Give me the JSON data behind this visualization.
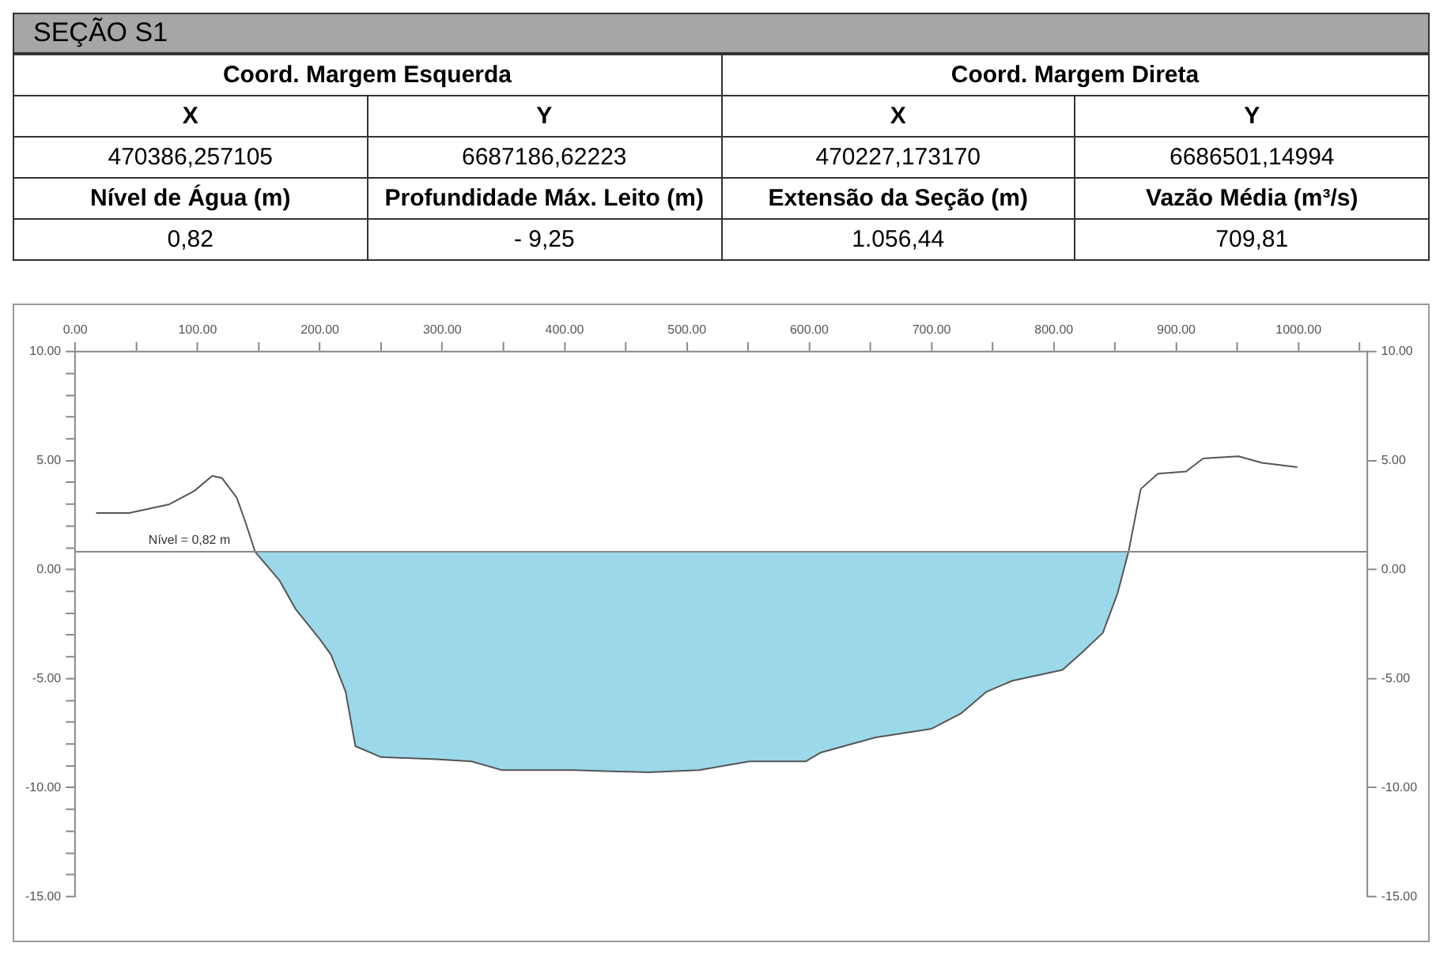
{
  "chart_data": {
    "type": "line",
    "title": "SEÇÃO S1",
    "annotations": [
      "Coord. Margem Esquerda",
      "Coord. Margem Direta",
      "X",
      "Y",
      "X",
      "Y",
      "470386,257105",
      "6687186,62223",
      "470227,173170",
      "6686501,14994",
      "Nível de Água (m)",
      "Profundidade Máx. Leito (m)",
      "Extensão da Seção (m)",
      "Vazão Média (m³/s)",
      "0,82",
      "- 9,25",
      "1.056,44",
      "709,81"
    ],
    "series": [
      {
        "type": "area",
        "color": "#9bd8e9",
        "x": [
          147,
          167,
          180,
          200,
          209,
          221,
          229,
          250,
          295,
          324,
          349,
          407,
          469,
          510,
          551,
          597,
          609,
          654,
          700,
          724,
          745,
          766,
          807,
          823,
          840,
          852,
          861
        ],
        "values": [
          0.82,
          -0.5,
          -1.8,
          -3.2,
          -3.9,
          -5.6,
          -8.1,
          -8.6,
          -8.7,
          -8.8,
          -9.2,
          -9.2,
          -9.3,
          -9.2,
          -8.8,
          -8.8,
          -8.4,
          -7.7,
          -7.3,
          -6.6,
          -5.6,
          -5.1,
          -4.6,
          -3.8,
          -2.9,
          -1.1,
          0.82
        ]
      },
      {
        "type": "line",
        "color": "#555555",
        "x": [
          17,
          44,
          77,
          97,
          112,
          120,
          132,
          139,
          147,
          167,
          180,
          200,
          209,
          221,
          229,
          250,
          295,
          324,
          349,
          407,
          469,
          510,
          551,
          597,
          609,
          654,
          700,
          724,
          745,
          766,
          807,
          823,
          840,
          852,
          861,
          871,
          885,
          908,
          922,
          951,
          970,
          999
        ],
        "values": [
          2.6,
          2.6,
          3.0,
          3.6,
          4.3,
          4.2,
          3.3,
          2.2,
          0.82,
          -0.5,
          -1.8,
          -3.2,
          -3.9,
          -5.6,
          -8.1,
          -8.6,
          -8.7,
          -8.8,
          -9.2,
          -9.2,
          -9.3,
          -9.2,
          -8.8,
          -8.8,
          -8.4,
          -7.7,
          -7.3,
          -6.6,
          -5.6,
          -5.1,
          -4.6,
          -3.8,
          -2.9,
          -1.1,
          0.82,
          3.7,
          4.4,
          4.5,
          5.1,
          5.2,
          4.9,
          4.7
        ]
      }
    ],
    "ref_lines": [
      {
        "axis": "y",
        "value": 0.82,
        "label": "Nível = 0,82 m",
        "color": "#888888"
      }
    ],
    "xlim": [
      0,
      1056
    ],
    "xticks": [
      {
        "value": 0,
        "label": "0.00"
      },
      {
        "value": 50,
        "label": null
      },
      {
        "value": 100,
        "label": "100.00"
      },
      {
        "value": 150,
        "label": null
      },
      {
        "value": 200,
        "label": "200.00"
      },
      {
        "value": 250,
        "label": null
      },
      {
        "value": 300,
        "label": "300.00"
      },
      {
        "value": 350,
        "label": null
      },
      {
        "value": 400,
        "label": "400.00"
      },
      {
        "value": 450,
        "label": null
      },
      {
        "value": 500,
        "label": "500.00"
      },
      {
        "value": 550,
        "label": null
      },
      {
        "value": 600,
        "label": "600.00"
      },
      {
        "value": 650,
        "label": null
      },
      {
        "value": 700,
        "label": "700.00"
      },
      {
        "value": 750,
        "label": null
      },
      {
        "value": 800,
        "label": "800.00"
      },
      {
        "value": 850,
        "label": null
      },
      {
        "value": 900,
        "label": "900.00"
      },
      {
        "value": 950,
        "label": null
      },
      {
        "value": 1000,
        "label": "1000.00"
      },
      {
        "value": 1050,
        "label": null
      }
    ],
    "ylim": [
      -15,
      10
    ],
    "yticks": [
      {
        "value": -15,
        "label": "-15.00"
      },
      {
        "value": -14,
        "label": null
      },
      {
        "value": -13,
        "label": null
      },
      {
        "value": -12,
        "label": null
      },
      {
        "value": -11,
        "label": null
      },
      {
        "value": -10,
        "label": "-10.00"
      },
      {
        "value": -9,
        "label": null
      },
      {
        "value": -8,
        "label": null
      },
      {
        "value": -7,
        "label": null
      },
      {
        "value": -6,
        "label": null
      },
      {
        "value": -5,
        "label": "-5.00"
      },
      {
        "value": -4,
        "label": null
      },
      {
        "value": -3,
        "label": null
      },
      {
        "value": -2,
        "label": null
      },
      {
        "value": -1,
        "label": null
      },
      {
        "value": 0,
        "label": "0.00"
      },
      {
        "value": 1,
        "label": null
      },
      {
        "value": 2,
        "label": null
      },
      {
        "value": 3,
        "label": null
      },
      {
        "value": 4,
        "label": null
      },
      {
        "value": 5,
        "label": "5.00"
      },
      {
        "value": 6,
        "label": null
      },
      {
        "value": 7,
        "label": null
      },
      {
        "value": 8,
        "label": null
      },
      {
        "value": 9,
        "label": null
      },
      {
        "value": 10,
        "label": "10.00"
      }
    ],
    "y2lim": [
      -15,
      10
    ],
    "y2ticks": [
      {
        "value": -15,
        "label": "-15.00"
      },
      {
        "value": -10,
        "label": "-10.00"
      },
      {
        "value": -5,
        "label": "-5.00"
      },
      {
        "value": 0,
        "label": "0.00"
      },
      {
        "value": 5,
        "label": "5.00"
      },
      {
        "value": 10,
        "label": "10.00"
      }
    ],
    "grid": false,
    "legend": false
  }
}
